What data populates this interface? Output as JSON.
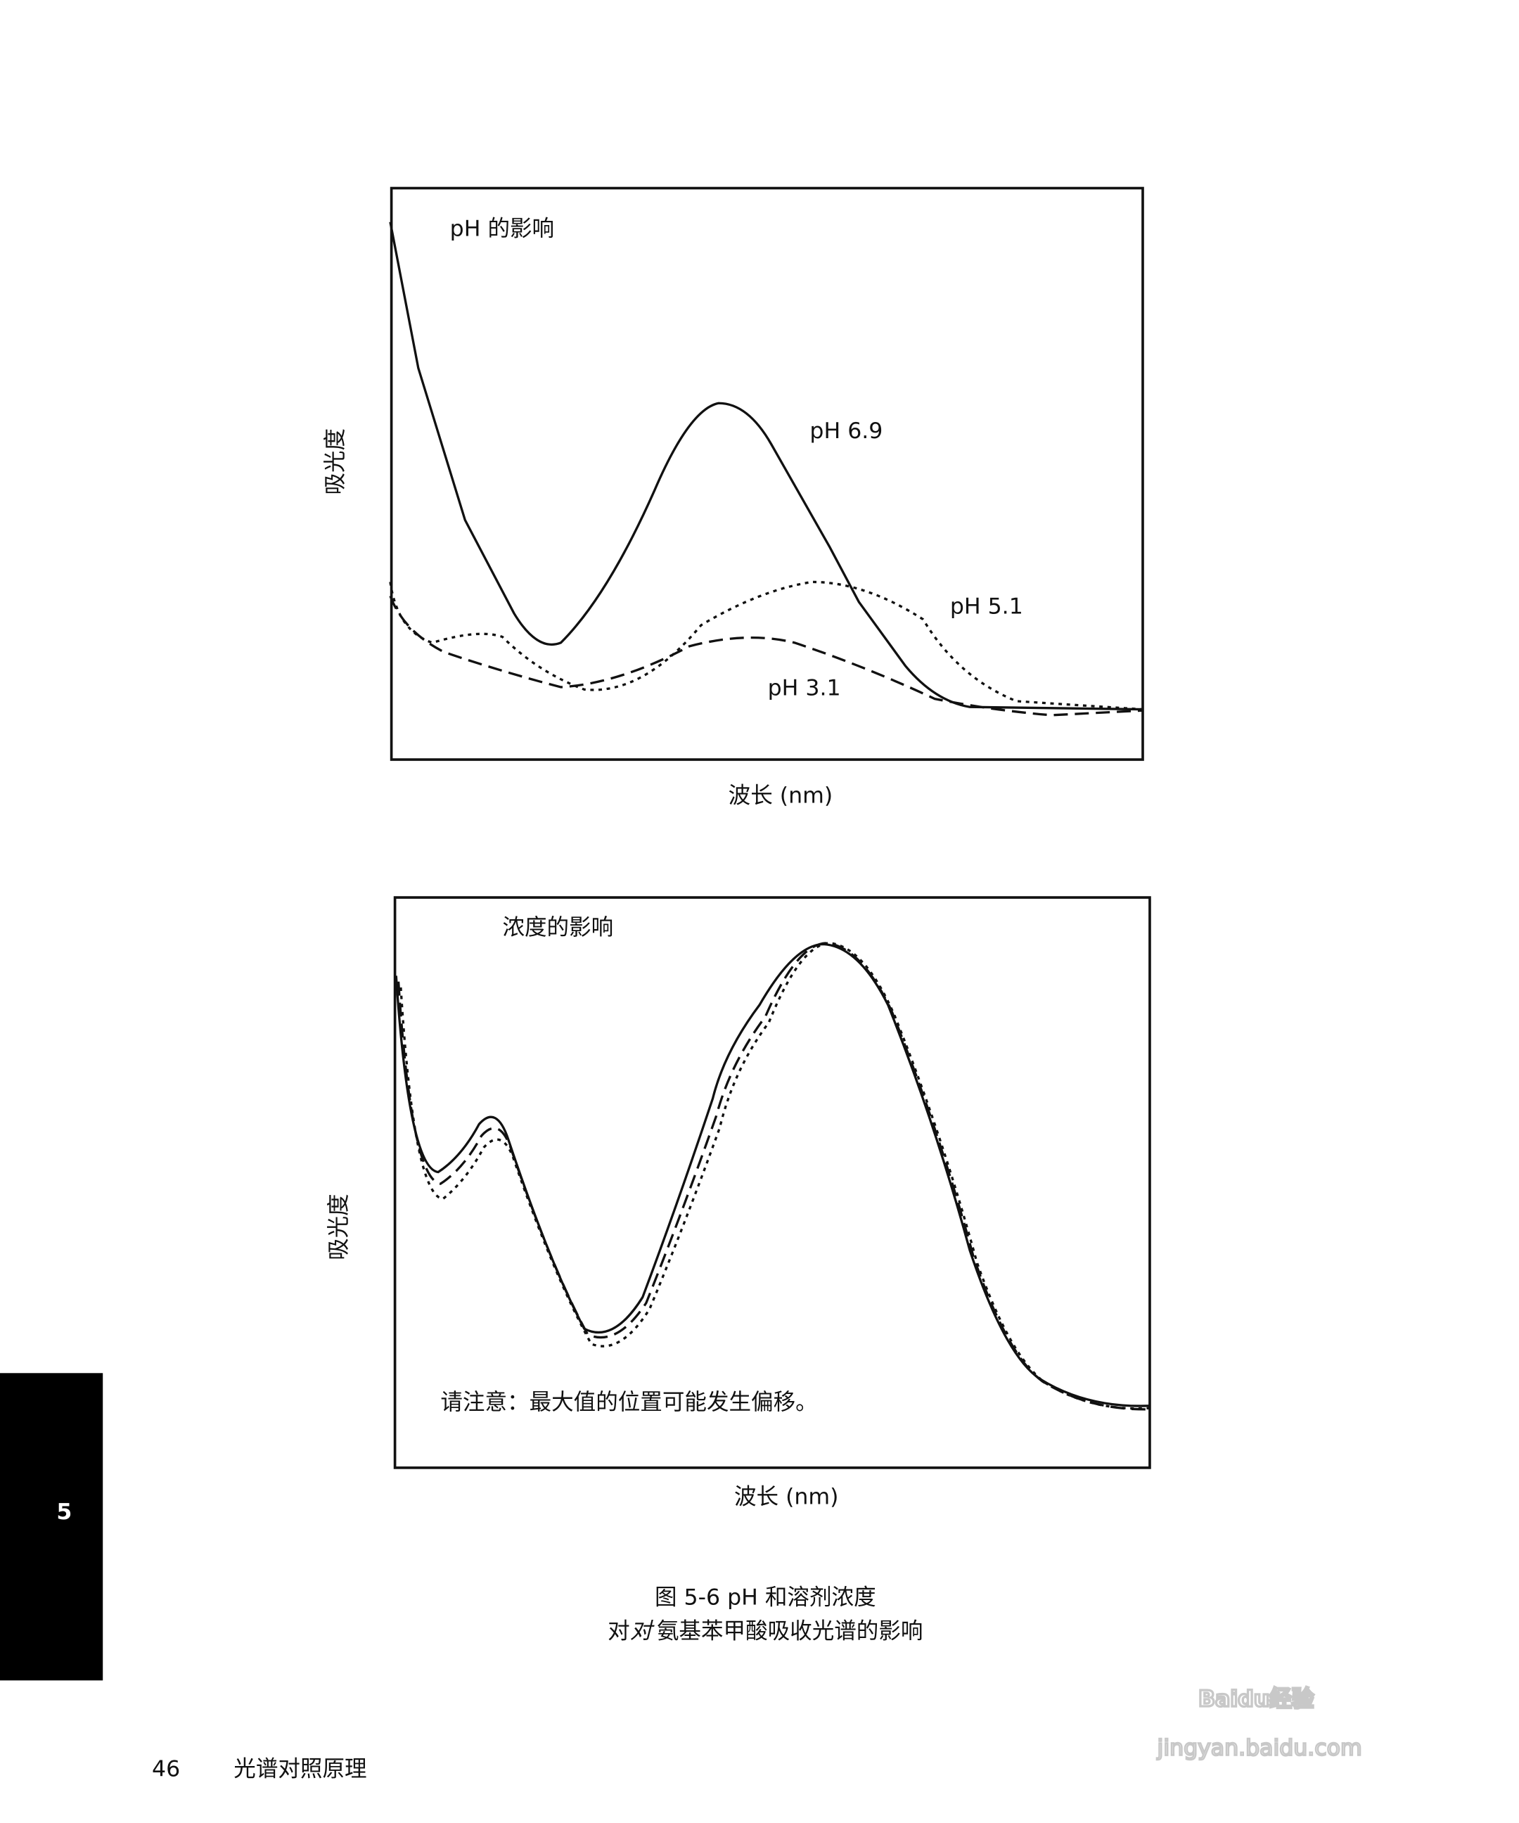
{
  "figure_top": {
    "title": "pH 的影响",
    "y_label": "吸光度",
    "x_label": "波长 (nm)",
    "curve_labels": [
      "pH 6.9",
      "pH 5.1",
      "pH 3.1"
    ]
  },
  "figure_bottom": {
    "title": "浓度的影响",
    "y_label": "吸光度",
    "x_label": "波长 (nm)",
    "note": "请注意：最大值的位置可能发生偏移。"
  },
  "caption": {
    "line1": "图 5-6 pH 和溶剂浓度",
    "line2_prefix": "对",
    "line2_italic": "对",
    "line2_rest": "氨基苯甲酸吸收光谱的影响"
  },
  "chapter_tab": "5",
  "footer": {
    "page_number": "46",
    "title": "光谱对照原理"
  },
  "watermark": {
    "brand": "Baidu经验",
    "url": "jingyan.baidu.com"
  }
}
